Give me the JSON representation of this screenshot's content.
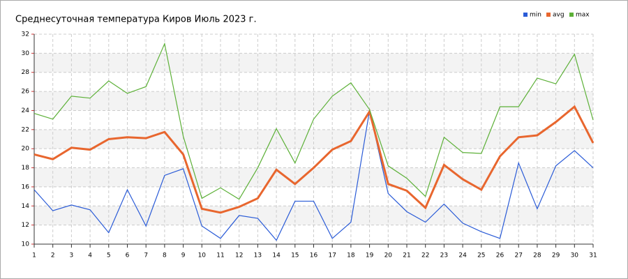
{
  "chart_data": {
    "type": "line",
    "title": "Среднесуточная температура Киров  Июль 2023 г.",
    "x": [
      1,
      2,
      3,
      4,
      5,
      6,
      7,
      8,
      9,
      10,
      11,
      12,
      13,
      14,
      15,
      16,
      17,
      18,
      19,
      20,
      21,
      22,
      23,
      24,
      25,
      26,
      27,
      28,
      29,
      30,
      31
    ],
    "xlim": [
      1,
      31
    ],
    "xticks": [
      1,
      2,
      3,
      4,
      5,
      6,
      7,
      8,
      9,
      10,
      11,
      12,
      13,
      14,
      15,
      16,
      17,
      18,
      19,
      20,
      21,
      22,
      23,
      24,
      25,
      26,
      27,
      28,
      29,
      30,
      31
    ],
    "ylim": [
      10,
      32
    ],
    "yticks": [
      10,
      12,
      14,
      16,
      18,
      20,
      22,
      24,
      26,
      28,
      30,
      32
    ],
    "grid": true,
    "legend": "top-right",
    "series": [
      {
        "name": "min",
        "color": "#2a5bd7",
        "values": [
          15.7,
          13.5,
          14.1,
          13.6,
          11.2,
          15.7,
          11.9,
          17.2,
          17.9,
          11.9,
          10.6,
          13.0,
          12.7,
          10.4,
          14.5,
          14.5,
          10.6,
          12.3,
          24.0,
          15.3,
          13.4,
          12.3,
          14.2,
          12.2,
          11.3,
          10.6,
          18.5,
          13.7,
          18.2,
          19.8,
          18.0
        ]
      },
      {
        "name": "avg",
        "color": "#e8662e",
        "values": [
          19.4,
          18.9,
          20.1,
          19.9,
          21.0,
          21.2,
          21.1,
          21.75,
          19.4,
          13.7,
          13.3,
          13.9,
          14.8,
          17.8,
          16.3,
          18.0,
          19.9,
          20.8,
          23.9,
          16.3,
          15.6,
          13.8,
          18.3,
          16.8,
          15.7,
          19.2,
          21.2,
          21.4,
          22.8,
          24.4,
          20.6
        ]
      },
      {
        "name": "max",
        "color": "#5cb037",
        "values": [
          23.7,
          23.1,
          25.5,
          25.3,
          27.1,
          25.8,
          26.5,
          31.0,
          21.3,
          14.8,
          15.9,
          14.7,
          18.0,
          22.1,
          18.5,
          23.1,
          25.5,
          26.9,
          24.1,
          18.2,
          16.9,
          15.0,
          21.2,
          19.6,
          19.5,
          24.4,
          24.4,
          27.4,
          26.8,
          29.9,
          23.0
        ]
      }
    ]
  }
}
